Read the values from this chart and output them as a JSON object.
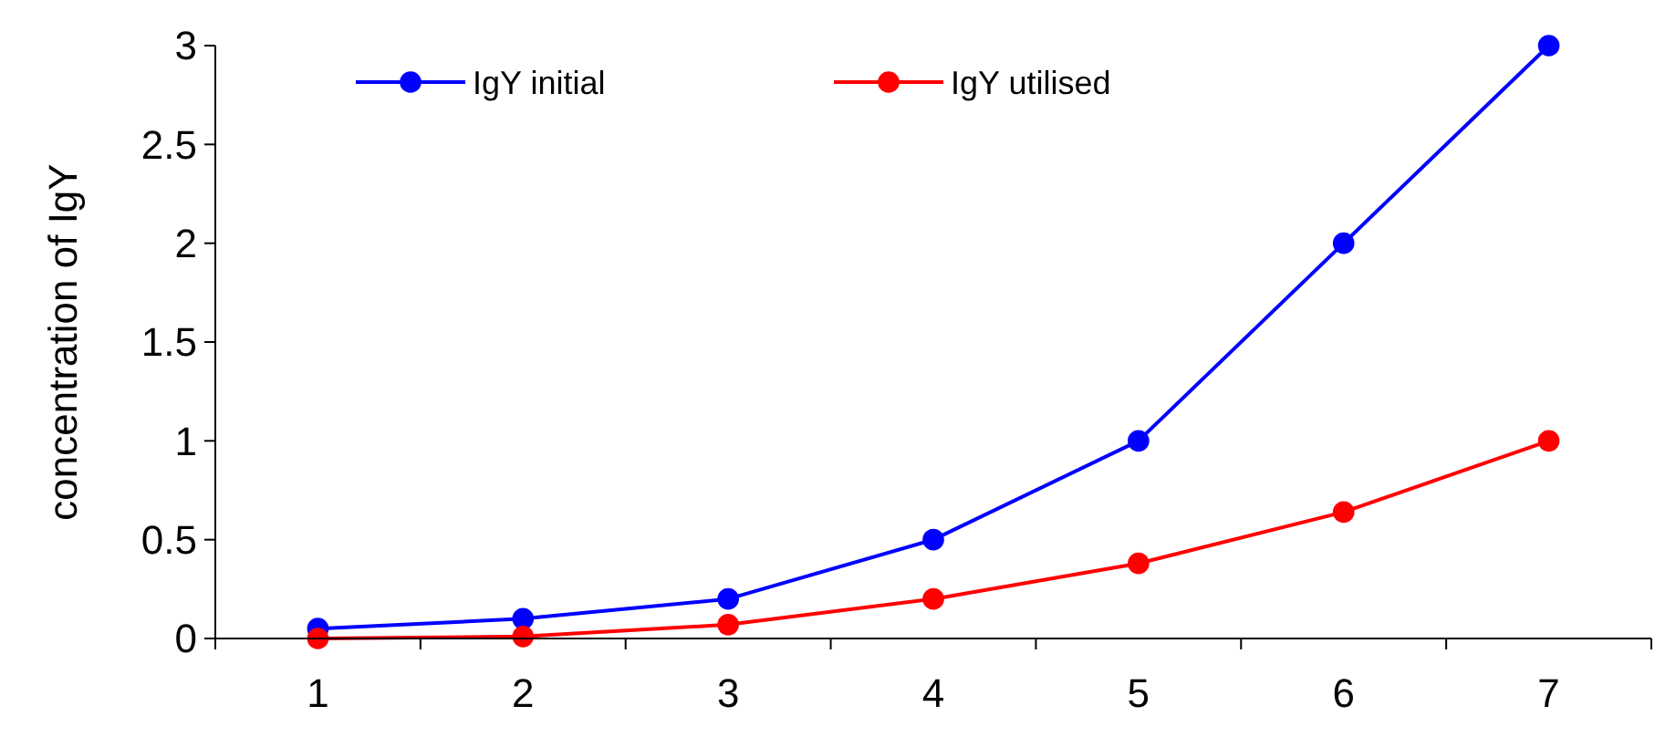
{
  "chart_data": {
    "type": "line",
    "ylabel": "concentration of IgY",
    "categories": [
      "1",
      "2",
      "3",
      "4",
      "5",
      "6",
      "7"
    ],
    "series": [
      {
        "name": "IgY initial",
        "color": "#0000ff",
        "values": [
          0.05,
          0.1,
          0.2,
          0.5,
          1,
          2,
          3
        ]
      },
      {
        "name": "IgY utilised",
        "color": "#ff0000",
        "values": [
          0,
          0.01,
          0.07,
          0.2,
          0.38,
          0.64,
          1
        ]
      }
    ],
    "ylim": [
      0,
      3
    ],
    "yticks": [
      0,
      0.5,
      1,
      1.5,
      2,
      2.5,
      3
    ],
    "legend": "top left",
    "marker": "circle",
    "grid": false
  }
}
